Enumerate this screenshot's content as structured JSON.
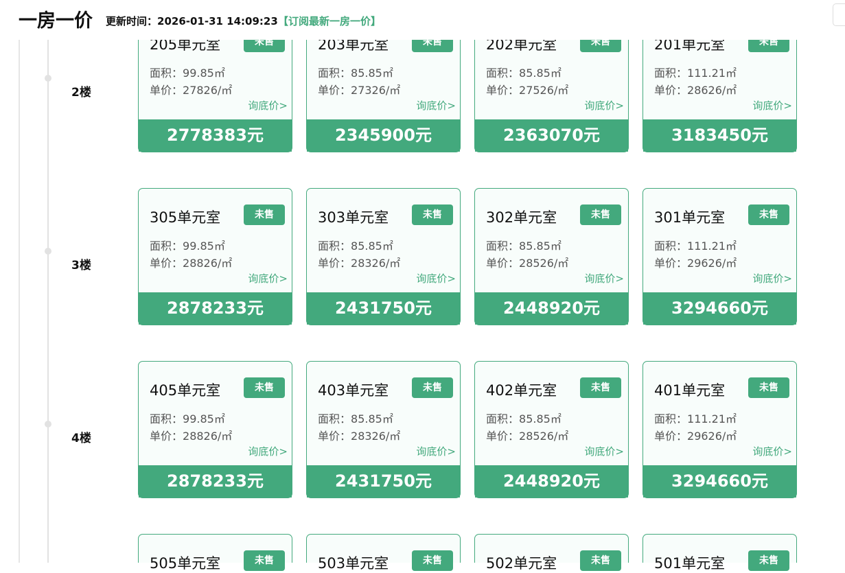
{
  "header": {
    "title": "一房一价",
    "update_label": "更新时间：",
    "update_time": "2026-01-31 14:09:23",
    "subscribe": "【订阅最新一房一价】"
  },
  "accent_color": "#43a97d",
  "labels": {
    "area": "面积：",
    "unit_price": "单价：",
    "ask": "询底价>"
  },
  "floors": [
    {
      "label": "2楼",
      "units": [
        {
          "room": "205单元室",
          "status": "未售",
          "area": "99.85㎡",
          "unit_price": "27826/㎡",
          "total": "2778383元"
        },
        {
          "room": "203单元室",
          "status": "未售",
          "area": "85.85㎡",
          "unit_price": "27326/㎡",
          "total": "2345900元"
        },
        {
          "room": "202单元室",
          "status": "未售",
          "area": "85.85㎡",
          "unit_price": "27526/㎡",
          "total": "2363070元"
        },
        {
          "room": "201单元室",
          "status": "未售",
          "area": "111.21㎡",
          "unit_price": "28626/㎡",
          "total": "3183450元"
        }
      ]
    },
    {
      "label": "3楼",
      "units": [
        {
          "room": "305单元室",
          "status": "未售",
          "area": "99.85㎡",
          "unit_price": "28826/㎡",
          "total": "2878233元"
        },
        {
          "room": "303单元室",
          "status": "未售",
          "area": "85.85㎡",
          "unit_price": "28326/㎡",
          "total": "2431750元"
        },
        {
          "room": "302单元室",
          "status": "未售",
          "area": "85.85㎡",
          "unit_price": "28526/㎡",
          "total": "2448920元"
        },
        {
          "room": "301单元室",
          "status": "未售",
          "area": "111.21㎡",
          "unit_price": "29626/㎡",
          "total": "3294660元"
        }
      ]
    },
    {
      "label": "4楼",
      "units": [
        {
          "room": "405单元室",
          "status": "未售",
          "area": "99.85㎡",
          "unit_price": "28826/㎡",
          "total": "2878233元"
        },
        {
          "room": "403单元室",
          "status": "未售",
          "area": "85.85㎡",
          "unit_price": "28326/㎡",
          "total": "2431750元"
        },
        {
          "room": "402单元室",
          "status": "未售",
          "area": "85.85㎡",
          "unit_price": "28526/㎡",
          "total": "2448920元"
        },
        {
          "room": "401单元室",
          "status": "未售",
          "area": "111.21㎡",
          "unit_price": "29626/㎡",
          "total": "3294660元"
        }
      ]
    },
    {
      "units": [
        {
          "room": "505单元室",
          "status": "未售"
        },
        {
          "room": "503单元室",
          "status": "未售"
        },
        {
          "room": "502单元室",
          "status": "未售"
        },
        {
          "room": "501单元室",
          "status": "未售"
        }
      ]
    }
  ]
}
